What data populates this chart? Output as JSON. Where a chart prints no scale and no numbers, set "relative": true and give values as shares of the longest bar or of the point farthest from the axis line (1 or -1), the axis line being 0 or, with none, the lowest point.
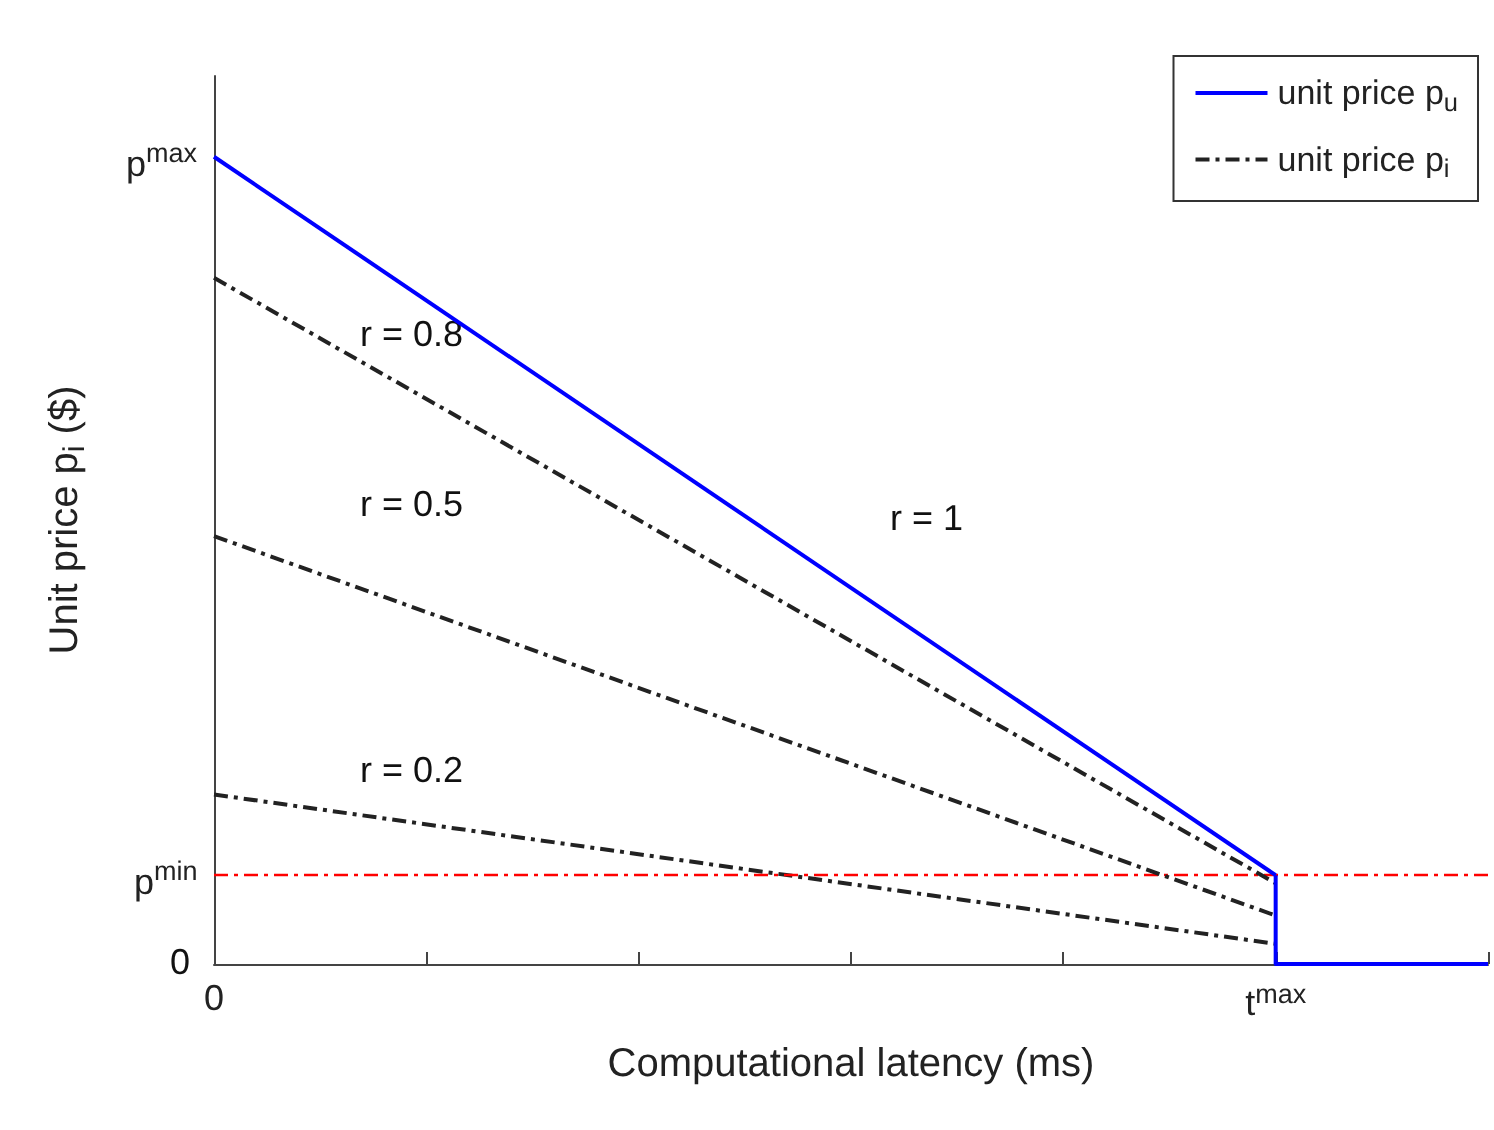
{
  "chart_data": {
    "type": "line",
    "relative": true,
    "xlabel": "Computational latency (ms)",
    "ylabel": "Unit price p$_{i}$ ($)",
    "categories": [
      "0",
      null,
      null,
      null,
      null,
      "t$^{max}$",
      null
    ],
    "series": [
      {
        "name": "unit price p$_{u}$",
        "color": "#0000ff",
        "line_style": "solid",
        "values": [
          1,
          null,
          null,
          null,
          null,
          0.11,
          null
        ]
      },
      {
        "type": "step",
        "color": "#0000ff",
        "line_style": "solid",
        "values": [
          null,
          null,
          null,
          null,
          null,
          0.11,
          0
        ]
      },
      {
        "name": "unit price p$_{i}$",
        "color": "#222222",
        "line_style": "dashed",
        "values": [
          0.85,
          null,
          null,
          null,
          null,
          0.1,
          null
        ]
      },
      {
        "color": "#222222",
        "line_style": "dashed",
        "values": [
          0.53,
          null,
          null,
          null,
          null,
          0.06,
          null
        ]
      },
      {
        "color": "#222222",
        "line_style": "dashed",
        "values": [
          0.21,
          null,
          null,
          null,
          null,
          0.025,
          null
        ]
      }
    ],
    "ref_lines": [
      {
        "axis": "y",
        "value": 0.11,
        "color": "#ff0000",
        "line_style": "dashed"
      }
    ],
    "annotations": [
      {
        "text": "p$^{max}$",
        "x": "0",
        "y": 1
      },
      {
        "text": "p$^{min}$",
        "x": "0",
        "y": 0.11
      },
      "0",
      "r = 0.8",
      "r = 0.5",
      "r = 0.2",
      "r = 1"
    ],
    "legend": "top right",
    "grid": false,
    "marker": "none"
  }
}
